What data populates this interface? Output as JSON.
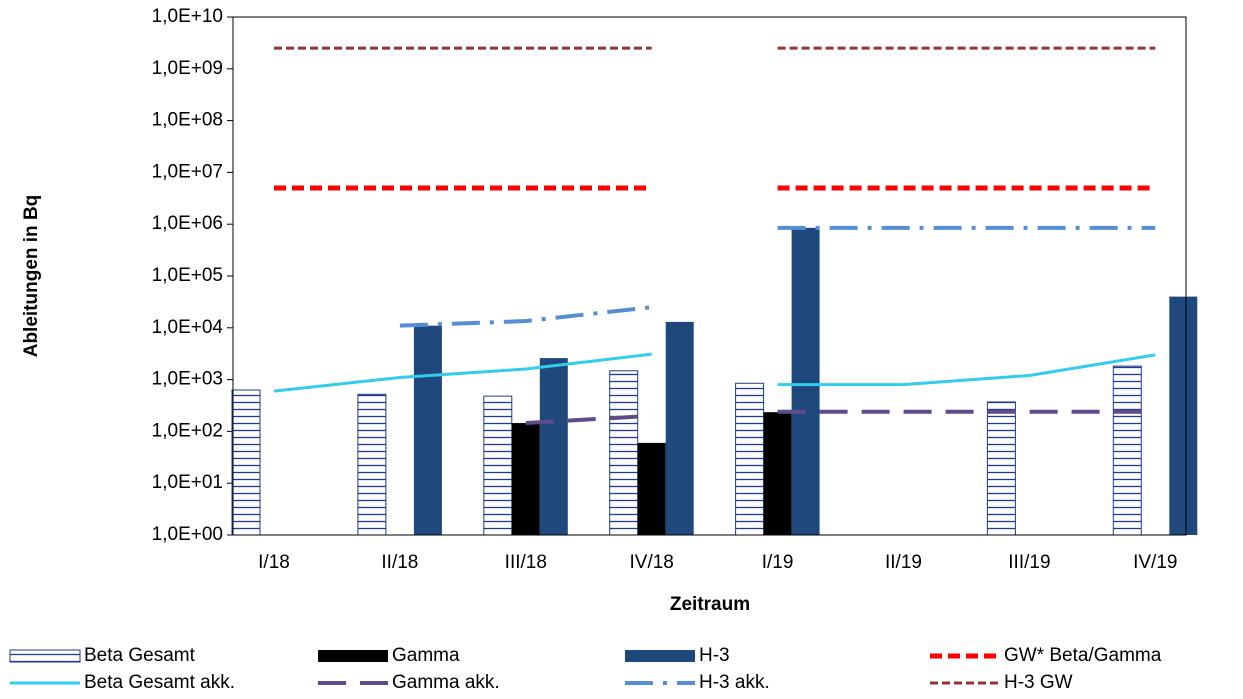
{
  "chart_data": {
    "type": "bar",
    "y_label": "Ableitungen in Bq",
    "x_label": "Zeitraum",
    "log_scale": true,
    "categories": [
      "I/18",
      "II/18",
      "III/18",
      "IV/18",
      "I/19",
      "II/19",
      "III/19",
      "IV/19"
    ],
    "ylim": [
      1,
      10000000000
    ],
    "yticks": [
      {
        "value": 1,
        "label": "1,0E+00"
      },
      {
        "value": 10,
        "label": "1,0E+01"
      },
      {
        "value": 100,
        "label": "1,0E+02"
      },
      {
        "value": 1000,
        "label": "1,0E+03"
      },
      {
        "value": 10000,
        "label": "1,0E+04"
      },
      {
        "value": 100000,
        "label": "1,0E+05"
      },
      {
        "value": 1000000,
        "label": "1,0E+06"
      },
      {
        "value": 10000000,
        "label": "1,0E+07"
      },
      {
        "value": 100000000,
        "label": "1,0E+08"
      },
      {
        "value": 1000000000,
        "label": "1,0E+09"
      },
      {
        "value": 10000000000,
        "label": "1,0E+10"
      }
    ],
    "line_breaks": [
      4
    ],
    "series": [
      {
        "name": "Beta Gesamt",
        "type": "bar",
        "color": "#1f3b8a",
        "pattern": "stripes",
        "values": [
          630,
          520,
          480,
          1480,
          850,
          null,
          370,
          1820
        ]
      },
      {
        "name": "Gamma",
        "type": "bar",
        "color": "#000000",
        "values": [
          null,
          null,
          145,
          60,
          235,
          null,
          null,
          null
        ]
      },
      {
        "name": "H-3",
        "type": "bar",
        "color": "#1f497d",
        "values": [
          null,
          11000,
          2600,
          13000,
          850000,
          null,
          null,
          40000
        ]
      },
      {
        "name": "GW* Beta/Gamma",
        "type": "line",
        "color": "#ff0000",
        "dash": "12 6",
        "width": 5,
        "values": [
          5000000,
          5000000,
          5000000,
          5000000,
          5000000,
          5000000,
          5000000,
          5000000
        ]
      },
      {
        "name": "Beta Gesamt akk.",
        "type": "line",
        "color": "#33ccee",
        "width": 3,
        "values": [
          600,
          1100,
          1600,
          3100,
          800,
          800,
          1200,
          3000
        ]
      },
      {
        "name": "Gamma akk.",
        "type": "line",
        "color": "#5f4b8b",
        "dash": "28 14",
        "width": 4,
        "values": [
          null,
          null,
          145,
          200,
          240,
          240,
          240,
          240
        ]
      },
      {
        "name": "H-3 akk.",
        "type": "line",
        "color": "#558ed5",
        "dash": "28 10 4 10",
        "width": 4,
        "values": [
          null,
          11000,
          13500,
          25000,
          850000,
          850000,
          850000,
          850000
        ]
      },
      {
        "name": "H-3 GW",
        "type": "line",
        "color": "#993333",
        "dash": "8 4",
        "width": 3,
        "values": [
          2500000000,
          2500000000,
          2500000000,
          2500000000,
          2500000000,
          2500000000,
          2500000000,
          2500000000
        ]
      }
    ]
  }
}
